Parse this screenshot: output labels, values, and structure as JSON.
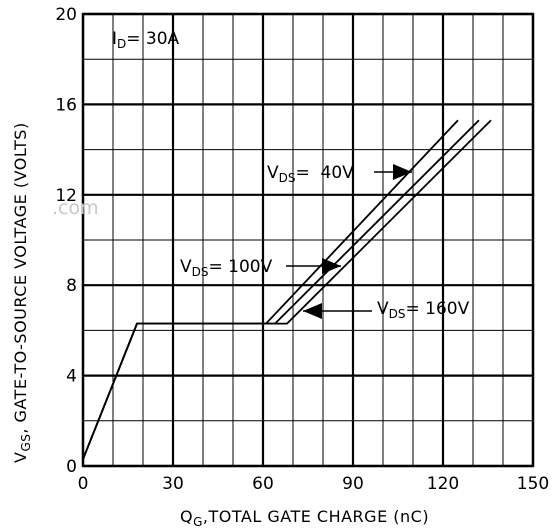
{
  "chart_data": {
    "type": "line",
    "xlabel": {
      "symbol": "Q",
      "sub": "G",
      "text": ",TOTAL GATE CHARGE (nC)"
    },
    "ylabel": {
      "symbol": "V",
      "sub": "GS",
      "text": ", GATE-TO-SOURCE VOLTAGE (VOLTS)"
    },
    "xlim": [
      0,
      150
    ],
    "ylim": [
      0,
      20
    ],
    "xticks": [
      0,
      30,
      60,
      90,
      120,
      150
    ],
    "yticks": [
      0,
      4,
      8,
      12,
      16,
      20
    ],
    "grid": true,
    "condition": {
      "symbol": "I",
      "sub": "D",
      "text": "= 30A"
    },
    "series": [
      {
        "name_symbol": "V",
        "name_sub": "DS",
        "name_text": "= 100V",
        "x": [
          0,
          18,
          61,
          125
        ],
        "y": [
          0.3,
          6.3,
          6.3,
          15.3
        ]
      },
      {
        "name_symbol": "V",
        "name_sub": "DS",
        "name_text": "=  40V",
        "x": [
          0,
          18,
          64,
          132
        ],
        "y": [
          0.3,
          6.3,
          6.3,
          15.3
        ]
      },
      {
        "name_symbol": "V",
        "name_sub": "DS",
        "name_text": "= 160V",
        "x": [
          0,
          18,
          68,
          136
        ],
        "y": [
          0.3,
          6.3,
          6.3,
          15.3
        ]
      }
    ],
    "watermark": ".com"
  }
}
